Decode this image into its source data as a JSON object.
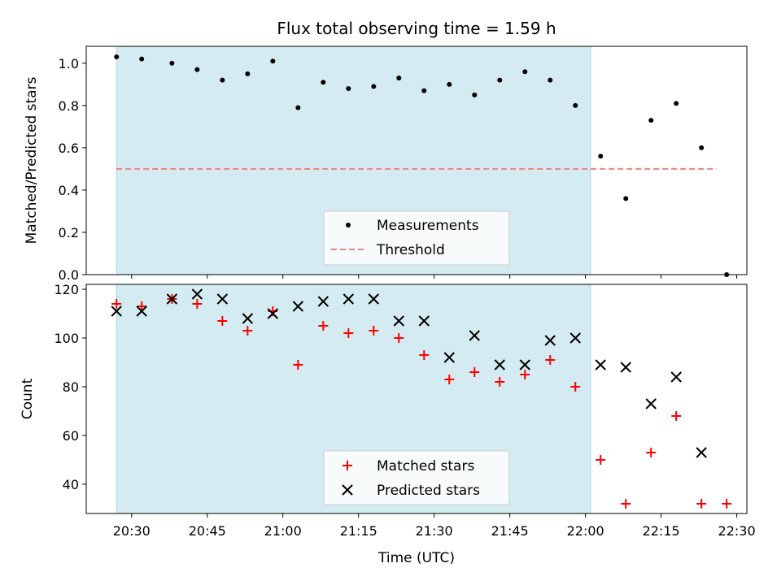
{
  "chart_data": {
    "title": "Flux total observing time = 1.59 h",
    "xlabel": "Time (UTC)",
    "x_tick_labels": [
      "20:30",
      "20:45",
      "21:00",
      "21:15",
      "21:30",
      "21:45",
      "22:00",
      "22:15",
      "22:30"
    ],
    "x_tick_minutes": [
      1230,
      1245,
      1260,
      1275,
      1290,
      1305,
      1320,
      1335,
      1350
    ],
    "xlim": [
      "20:21",
      "22:32"
    ],
    "shaded_span": {
      "start": "20:27",
      "end": "22:01",
      "color": "#d4ebf1"
    },
    "panels": [
      {
        "type": "scatter",
        "ylabel": "Matched/Predicted stars",
        "ylim": [
          0,
          1.08
        ],
        "y_ticks": [
          0.0,
          0.2,
          0.4,
          0.6,
          0.8,
          1.0
        ],
        "y_tick_labels": [
          "0.0",
          "0.2",
          "0.4",
          "0.6",
          "0.8",
          "1.0"
        ],
        "legend_position": "lower-center",
        "threshold": {
          "name": "Threshold",
          "value": 0.5,
          "x_start": "20:27",
          "x_end": "22:26",
          "color": "#f08080"
        },
        "series": [
          {
            "name": "Measurements",
            "marker": "dot",
            "color": "#000000",
            "x": [
              "20:27",
              "20:32",
              "20:38",
              "20:43",
              "20:48",
              "20:53",
              "20:58",
              "21:03",
              "21:08",
              "21:13",
              "21:18",
              "21:23",
              "21:28",
              "21:33",
              "21:38",
              "21:43",
              "21:48",
              "21:53",
              "21:58",
              "22:03",
              "22:08",
              "22:13",
              "22:18",
              "22:23",
              "22:28"
            ],
            "y": [
              1.03,
              1.02,
              1.0,
              0.97,
              0.92,
              0.95,
              1.01,
              0.79,
              0.91,
              0.88,
              0.89,
              0.93,
              0.87,
              0.9,
              0.85,
              0.92,
              0.96,
              0.92,
              0.8,
              0.56,
              0.36,
              0.73,
              0.81,
              0.6,
              0.0
            ]
          }
        ]
      },
      {
        "type": "scatter",
        "ylabel": "Count",
        "ylim": [
          28,
          122
        ],
        "y_ticks": [
          40,
          60,
          80,
          100,
          120
        ],
        "y_tick_labels": [
          "40",
          "60",
          "80",
          "100",
          "120"
        ],
        "legend_position": "lower-center",
        "series": [
          {
            "name": "Matched stars",
            "marker": "plus",
            "color": "#ff0000",
            "x": [
              "20:27",
              "20:32",
              "20:38",
              "20:43",
              "20:48",
              "20:53",
              "20:58",
              "21:03",
              "21:08",
              "21:13",
              "21:18",
              "21:23",
              "21:28",
              "21:33",
              "21:38",
              "21:43",
              "21:48",
              "21:53",
              "21:58",
              "22:03",
              "22:08",
              "22:13",
              "22:18",
              "22:23",
              "22:28"
            ],
            "y": [
              114,
              113,
              116,
              114,
              107,
              103,
              111,
              89,
              105,
              102,
              103,
              100,
              93,
              83,
              86,
              82,
              85,
              91,
              80,
              50,
              32,
              53,
              68,
              32,
              32
            ]
          },
          {
            "name": "Predicted stars",
            "marker": "x",
            "color": "#000000",
            "x": [
              "20:27",
              "20:32",
              "20:38",
              "20:43",
              "20:48",
              "20:53",
              "20:58",
              "21:03",
              "21:08",
              "21:13",
              "21:18",
              "21:23",
              "21:28",
              "21:33",
              "21:38",
              "21:43",
              "21:48",
              "21:53",
              "21:58",
              "22:03",
              "22:08",
              "22:13",
              "22:18",
              "22:23"
            ],
            "y": [
              111,
              111,
              116,
              118,
              116,
              108,
              110,
              113,
              115,
              116,
              116,
              107,
              107,
              92,
              101,
              89,
              89,
              99,
              100,
              89,
              88,
              73,
              84,
              53
            ]
          }
        ]
      }
    ]
  }
}
